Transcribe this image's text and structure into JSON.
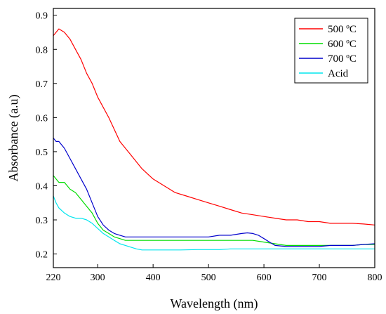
{
  "chart_data": {
    "type": "line",
    "title": "",
    "xlabel": "Wavelength (nm)",
    "ylabel": "Absorbance (a.u)",
    "xlim": [
      220,
      800
    ],
    "ylim": [
      0.16,
      0.92
    ],
    "xticks": [
      220,
      300,
      400,
      500,
      600,
      700,
      800
    ],
    "xtick_labels": [
      "220",
      "300",
      "400",
      "500",
      "600",
      "700",
      "800"
    ],
    "yticks": [
      0.2,
      0.3,
      0.4,
      0.5,
      0.6,
      0.7,
      0.8,
      0.9
    ],
    "ytick_labels": [
      "0.2",
      "0.3",
      "0.4",
      "0.5",
      "0.6",
      "0.7",
      "0.8",
      "0.9"
    ],
    "grid": false,
    "legend": "top-right",
    "series": [
      {
        "name": "500 ºC",
        "color": "#ff0000",
        "x": [
          220,
          225,
          230,
          240,
          250,
          260,
          270,
          280,
          290,
          300,
          320,
          340,
          360,
          380,
          400,
          420,
          440,
          460,
          480,
          500,
          520,
          540,
          560,
          580,
          600,
          620,
          640,
          660,
          680,
          700,
          720,
          740,
          760,
          780,
          800
        ],
        "y": [
          0.84,
          0.85,
          0.86,
          0.85,
          0.83,
          0.8,
          0.77,
          0.73,
          0.7,
          0.66,
          0.6,
          0.53,
          0.49,
          0.45,
          0.42,
          0.4,
          0.38,
          0.37,
          0.36,
          0.35,
          0.34,
          0.33,
          0.32,
          0.315,
          0.31,
          0.305,
          0.3,
          0.3,
          0.295,
          0.295,
          0.29,
          0.29,
          0.29,
          0.288,
          0.285
        ]
      },
      {
        "name": "600 ºC",
        "color": "#00dd00",
        "x": [
          220,
          225,
          230,
          240,
          250,
          260,
          270,
          280,
          290,
          300,
          310,
          320,
          330,
          340,
          350,
          360,
          380,
          400,
          420,
          450,
          480,
          500,
          520,
          540,
          560,
          580,
          600,
          620,
          640,
          660,
          680,
          700,
          720,
          740,
          760,
          780,
          800
        ],
        "y": [
          0.43,
          0.42,
          0.41,
          0.41,
          0.39,
          0.38,
          0.36,
          0.34,
          0.32,
          0.29,
          0.27,
          0.26,
          0.25,
          0.245,
          0.24,
          0.24,
          0.24,
          0.24,
          0.24,
          0.24,
          0.24,
          0.24,
          0.24,
          0.24,
          0.24,
          0.24,
          0.235,
          0.23,
          0.225,
          0.225,
          0.225,
          0.225,
          0.225,
          0.225,
          0.225,
          0.228,
          0.228
        ]
      },
      {
        "name": "700 ºC",
        "color": "#0000cc",
        "x": [
          220,
          225,
          230,
          240,
          250,
          260,
          270,
          280,
          290,
          300,
          310,
          320,
          330,
          340,
          350,
          360,
          380,
          400,
          420,
          450,
          480,
          500,
          520,
          540,
          560,
          570,
          580,
          590,
          600,
          610,
          620,
          640,
          660,
          680,
          700,
          720,
          740,
          760,
          780,
          800
        ],
        "y": [
          0.54,
          0.53,
          0.53,
          0.51,
          0.48,
          0.45,
          0.42,
          0.39,
          0.35,
          0.31,
          0.285,
          0.27,
          0.26,
          0.255,
          0.25,
          0.25,
          0.25,
          0.25,
          0.25,
          0.25,
          0.25,
          0.25,
          0.255,
          0.255,
          0.26,
          0.262,
          0.26,
          0.255,
          0.245,
          0.235,
          0.225,
          0.222,
          0.222,
          0.222,
          0.222,
          0.225,
          0.225,
          0.225,
          0.228,
          0.23
        ]
      },
      {
        "name": "Acid",
        "color": "#00e5ee",
        "x": [
          220,
          225,
          230,
          240,
          250,
          260,
          270,
          280,
          290,
          300,
          310,
          320,
          330,
          340,
          350,
          360,
          370,
          380,
          400,
          420,
          450,
          480,
          500,
          520,
          540,
          560,
          580,
          600,
          620,
          640,
          660,
          680,
          700,
          720,
          740,
          760,
          780,
          800
        ],
        "y": [
          0.37,
          0.35,
          0.335,
          0.32,
          0.31,
          0.305,
          0.305,
          0.3,
          0.29,
          0.275,
          0.26,
          0.25,
          0.24,
          0.23,
          0.225,
          0.22,
          0.215,
          0.212,
          0.212,
          0.212,
          0.212,
          0.213,
          0.213,
          0.213,
          0.215,
          0.215,
          0.215,
          0.215,
          0.215,
          0.215,
          0.215,
          0.215,
          0.215,
          0.215,
          0.215,
          0.215,
          0.215,
          0.215
        ]
      }
    ]
  }
}
